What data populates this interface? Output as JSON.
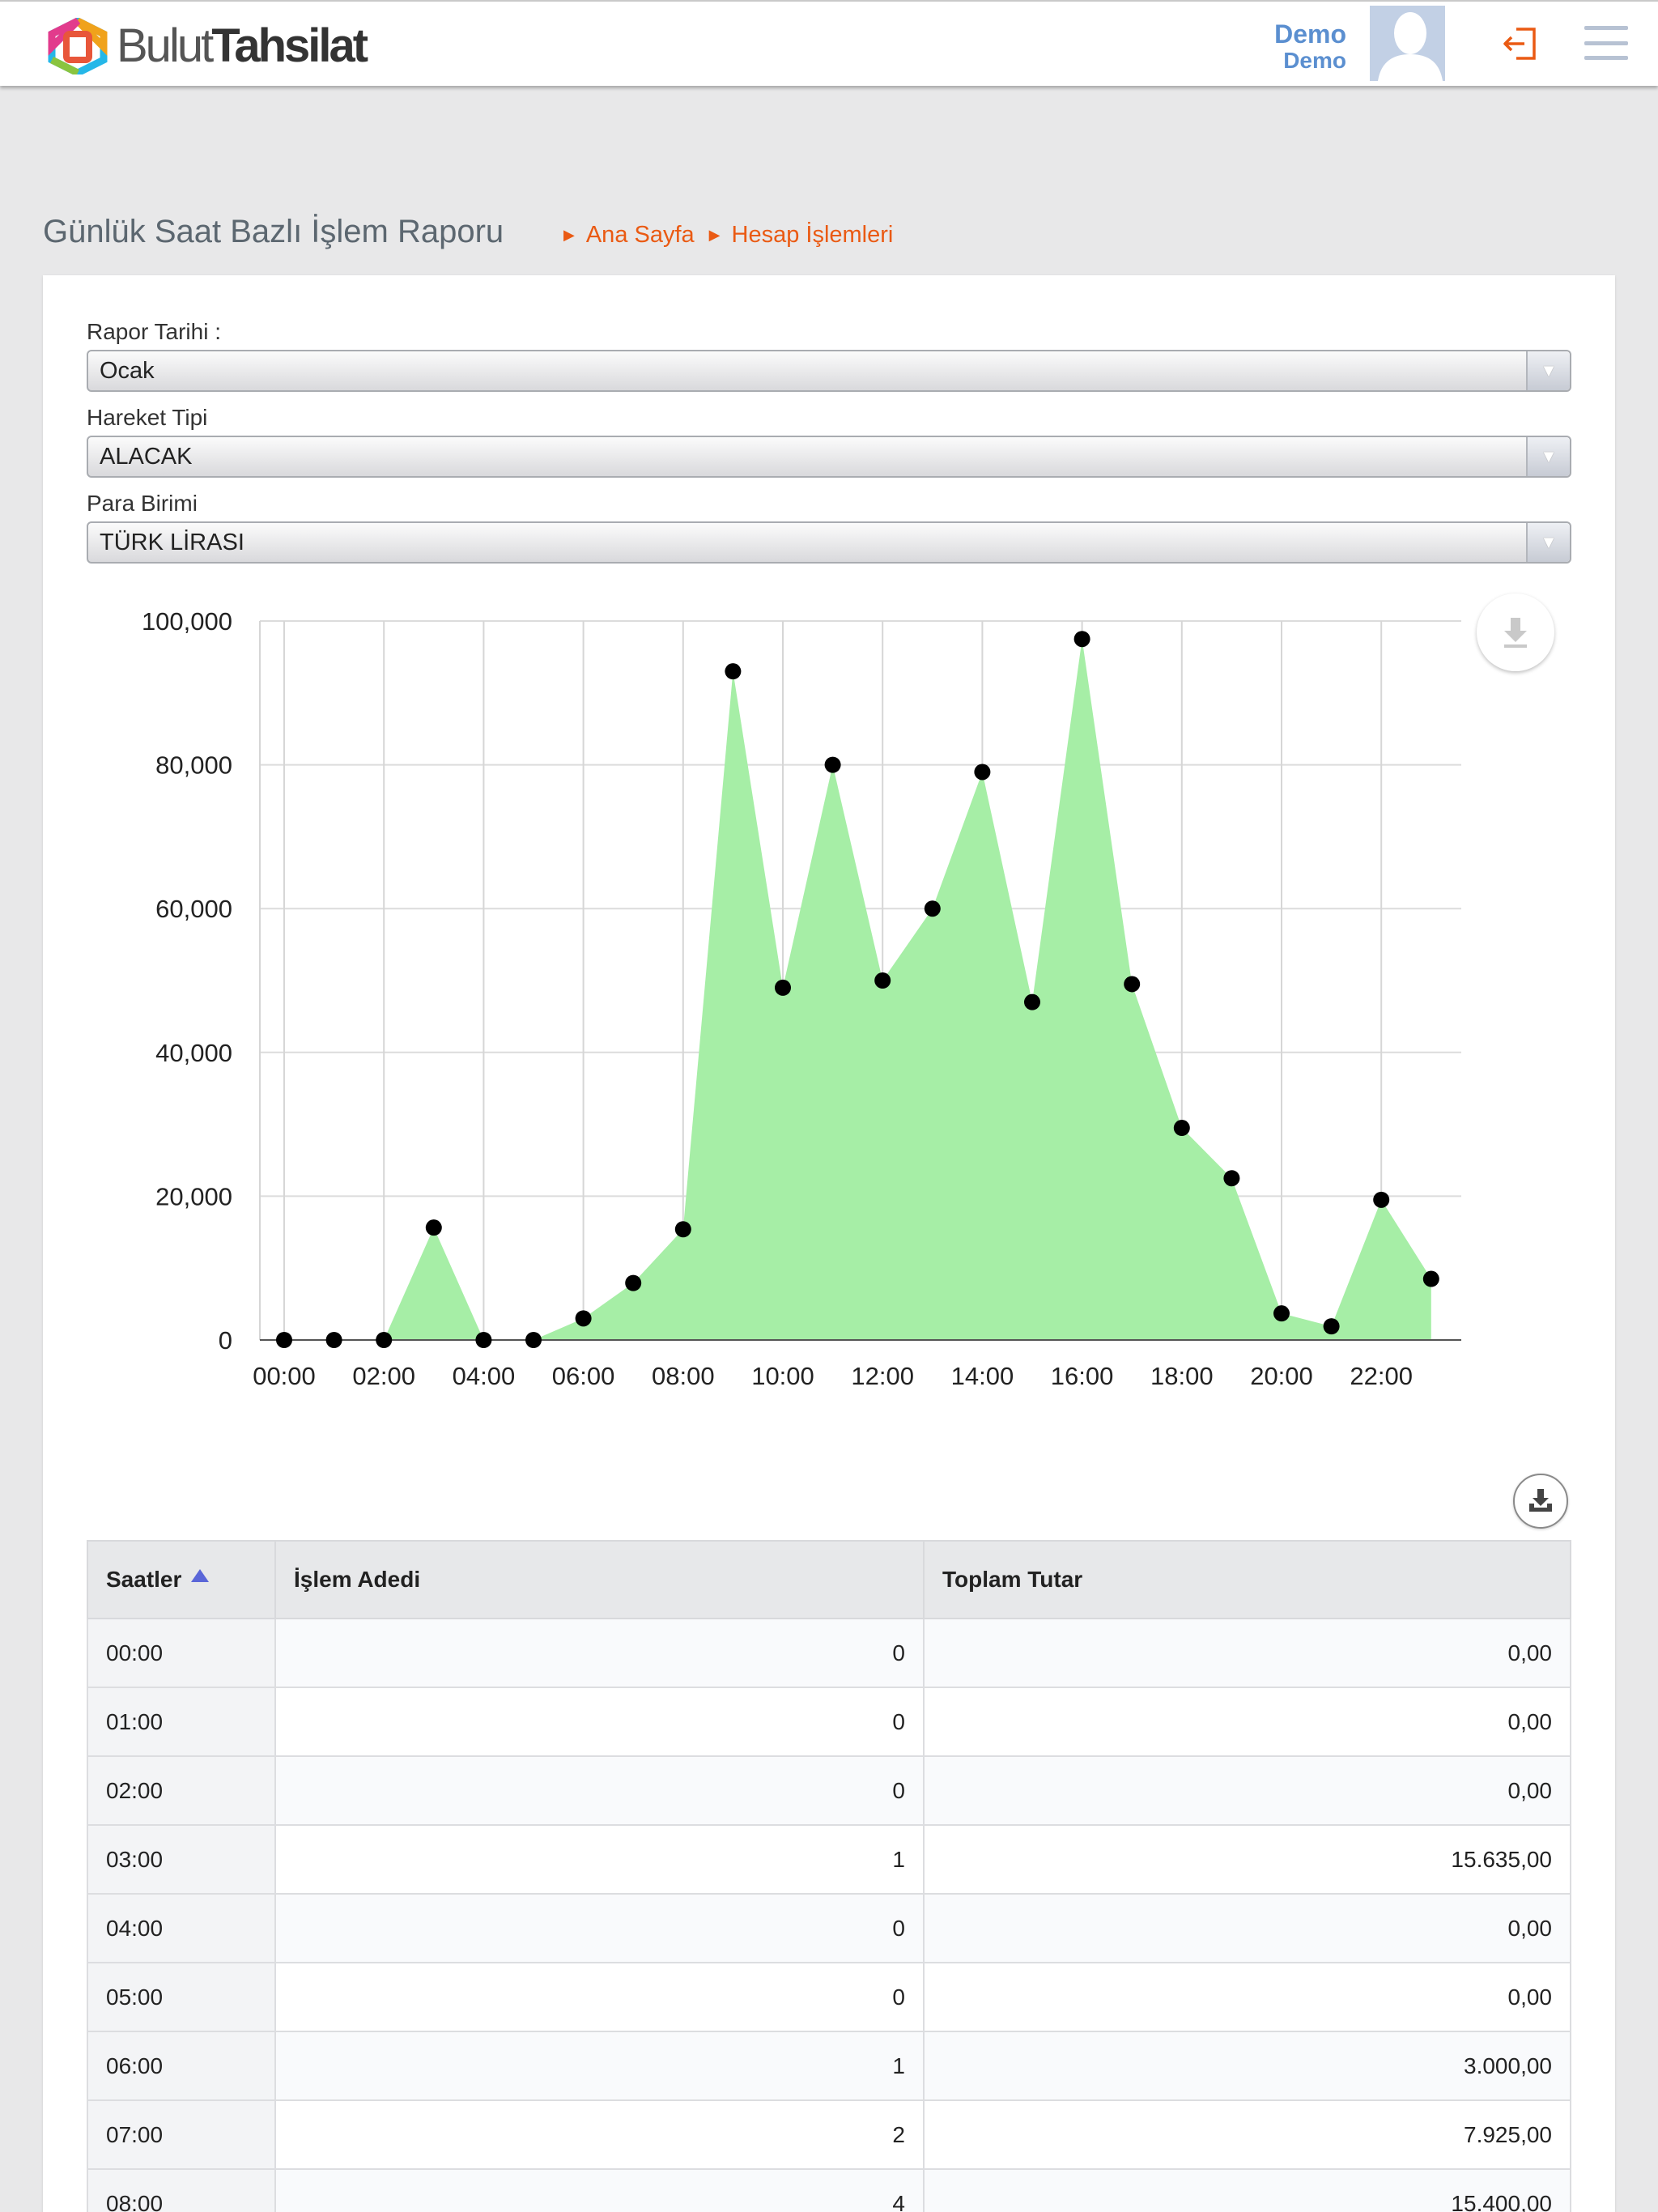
{
  "app": {
    "logo_text_a": "Bulut",
    "logo_text_b": "Tahsilat",
    "user_name": "Demo",
    "user_role": "Demo"
  },
  "page": {
    "title": "Günlük Saat Bazlı İşlem Raporu",
    "breadcrumb": [
      "Ana Sayfa",
      "Hesap İşlemleri"
    ]
  },
  "filters": {
    "report_date": {
      "label": "Rapor Tarihi :",
      "value": "Ocak"
    },
    "movement_type": {
      "label": "Hareket Tipi",
      "value": "ALACAK"
    },
    "currency": {
      "label": "Para Birimi",
      "value": "TÜRK LİRASI"
    }
  },
  "colors": {
    "accent": "#ea5a13",
    "user_blue": "#5b8fd0",
    "area_fill": "#a6eea6",
    "point": "#000000"
  },
  "icons": {
    "chart_export": "download-icon",
    "table_download": "download-tray-icon",
    "logout": "logout-icon",
    "menu": "hamburger-menu-icon"
  },
  "chart_data": {
    "type": "area",
    "x": [
      "00:00",
      "01:00",
      "02:00",
      "03:00",
      "04:00",
      "05:00",
      "06:00",
      "07:00",
      "08:00",
      "09:00",
      "10:00",
      "11:00",
      "12:00",
      "13:00",
      "14:00",
      "15:00",
      "16:00",
      "17:00",
      "18:00",
      "19:00",
      "20:00",
      "21:00",
      "22:00",
      "23:00"
    ],
    "x_tick_labels": [
      "00:00",
      "02:00",
      "04:00",
      "06:00",
      "08:00",
      "10:00",
      "12:00",
      "14:00",
      "16:00",
      "18:00",
      "20:00",
      "22:00"
    ],
    "values": [
      0,
      0,
      0,
      15635,
      0,
      0,
      3000,
      7925,
      15400,
      93000,
      49000,
      80000,
      50000,
      60000,
      79000,
      47000,
      97500,
      49500,
      29500,
      22500,
      3700,
      1900,
      19500,
      8500
    ],
    "y_tick_labels": [
      "0",
      "20,000",
      "40,000",
      "60,000",
      "80,000",
      "100,000"
    ],
    "ylim": [
      0,
      100000
    ],
    "grid": true,
    "markers": true
  },
  "table": {
    "headers": [
      "Saatler",
      "İşlem Adedi",
      "Toplam Tutar"
    ],
    "rows": [
      [
        "00:00",
        "0",
        "0,00"
      ],
      [
        "01:00",
        "0",
        "0,00"
      ],
      [
        "02:00",
        "0",
        "0,00"
      ],
      [
        "03:00",
        "1",
        "15.635,00"
      ],
      [
        "04:00",
        "0",
        "0,00"
      ],
      [
        "05:00",
        "0",
        "0,00"
      ],
      [
        "06:00",
        "1",
        "3.000,00"
      ],
      [
        "07:00",
        "2",
        "7.925,00"
      ],
      [
        "08:00",
        "4",
        "15.400,00"
      ]
    ]
  }
}
